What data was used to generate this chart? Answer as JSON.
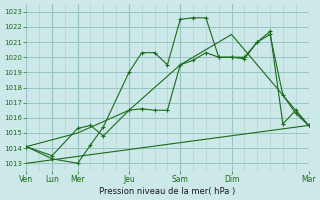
{
  "title": "Pression niveau de la mer( hPa )",
  "bg_color": "#cce8e8",
  "grid_minor_color": "#b0d4d4",
  "grid_major_color": "#99c4c4",
  "line_color": "#1a6b1a",
  "ylim": [
    1012.5,
    1023.5
  ],
  "yticks": [
    1013,
    1014,
    1015,
    1016,
    1017,
    1018,
    1019,
    1020,
    1021,
    1022,
    1023
  ],
  "xlim": [
    0,
    11
  ],
  "xtick_major_pos": [
    0,
    1,
    2,
    4,
    6,
    8,
    11
  ],
  "xtick_major_labels": [
    "Ven",
    "Lun",
    "Mer",
    "Jeu",
    "Sam",
    "Dim",
    "Mar"
  ],
  "line1_x": [
    0,
    1,
    2,
    2.5,
    3.0,
    4.0,
    4.5,
    5.0,
    5.5,
    6.0,
    6.5,
    7.0,
    7.5,
    8.0,
    8.5,
    9.0,
    9.5,
    10.0,
    10.5,
    11.0
  ],
  "line1_y": [
    1014.1,
    1013.3,
    1013.0,
    1014.2,
    1015.4,
    1019.0,
    1020.3,
    1020.3,
    1019.5,
    1022.5,
    1022.6,
    1022.6,
    1020.0,
    1020.0,
    1019.9,
    1021.0,
    1021.7,
    1015.6,
    1016.5,
    1015.5
  ],
  "line2_x": [
    0,
    1,
    2,
    2.5,
    3.0,
    4.0,
    4.5,
    5.0,
    5.5,
    6.0,
    6.5,
    7.0,
    7.5,
    8.0,
    8.5,
    9.0,
    9.5,
    10.0,
    10.5,
    11.0
  ],
  "line2_y": [
    1014.1,
    1013.5,
    1015.3,
    1015.5,
    1014.8,
    1016.5,
    1016.6,
    1016.5,
    1016.5,
    1019.5,
    1019.8,
    1020.3,
    1020.0,
    1020.0,
    1020.0,
    1021.0,
    1021.5,
    1017.5,
    1016.3,
    1015.5
  ],
  "line3_x": [
    0,
    2,
    4,
    6,
    8,
    11
  ],
  "line3_y": [
    1014.1,
    1015.0,
    1016.5,
    1019.5,
    1021.5,
    1015.5
  ],
  "line4_x": [
    0,
    11
  ],
  "line4_y": [
    1013.0,
    1015.5
  ]
}
